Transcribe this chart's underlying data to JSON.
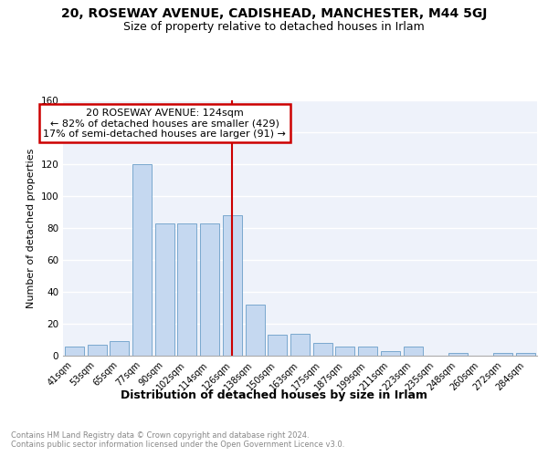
{
  "title_line1": "20, ROSEWAY AVENUE, CADISHEAD, MANCHESTER, M44 5GJ",
  "title_line2": "Size of property relative to detached houses in Irlam",
  "xlabel": "Distribution of detached houses by size in Irlam",
  "ylabel": "Number of detached properties",
  "categories": [
    "41sqm",
    "53sqm",
    "65sqm",
    "77sqm",
    "90sqm",
    "102sqm",
    "114sqm",
    "126sqm",
    "138sqm",
    "150sqm",
    "163sqm",
    "175sqm",
    "187sqm",
    "199sqm",
    "211sqm",
    "223sqm",
    "235sqm",
    "248sqm",
    "260sqm",
    "272sqm",
    "284sqm"
  ],
  "values": [
    6,
    7,
    9,
    120,
    83,
    83,
    83,
    88,
    32,
    13,
    14,
    8,
    6,
    6,
    3,
    6,
    0,
    2,
    0,
    2,
    2
  ],
  "bar_color": "#c5d8f0",
  "bar_edge_color": "#6a9ec8",
  "vline_x_index": 7,
  "vline_color": "#cc0000",
  "vline_label": "20 ROSEWAY AVENUE: 124sqm",
  "annotation_line2": "← 82% of detached houses are smaller (429)",
  "annotation_line3": "17% of semi-detached houses are larger (91) →",
  "box_edge_color": "#cc0000",
  "background_color": "#eef2fa",
  "grid_color": "#ffffff",
  "ylim": [
    0,
    160
  ],
  "yticks": [
    0,
    20,
    40,
    60,
    80,
    100,
    120,
    140,
    160
  ],
  "footnote": "Contains HM Land Registry data © Crown copyright and database right 2024.\nContains public sector information licensed under the Open Government Licence v3.0.",
  "title_fontsize": 10,
  "subtitle_fontsize": 9,
  "ylabel_fontsize": 8,
  "xlabel_fontsize": 9,
  "tick_fontsize": 7,
  "annotation_fontsize": 8,
  "footnote_fontsize": 6,
  "footnote_color": "#888888"
}
